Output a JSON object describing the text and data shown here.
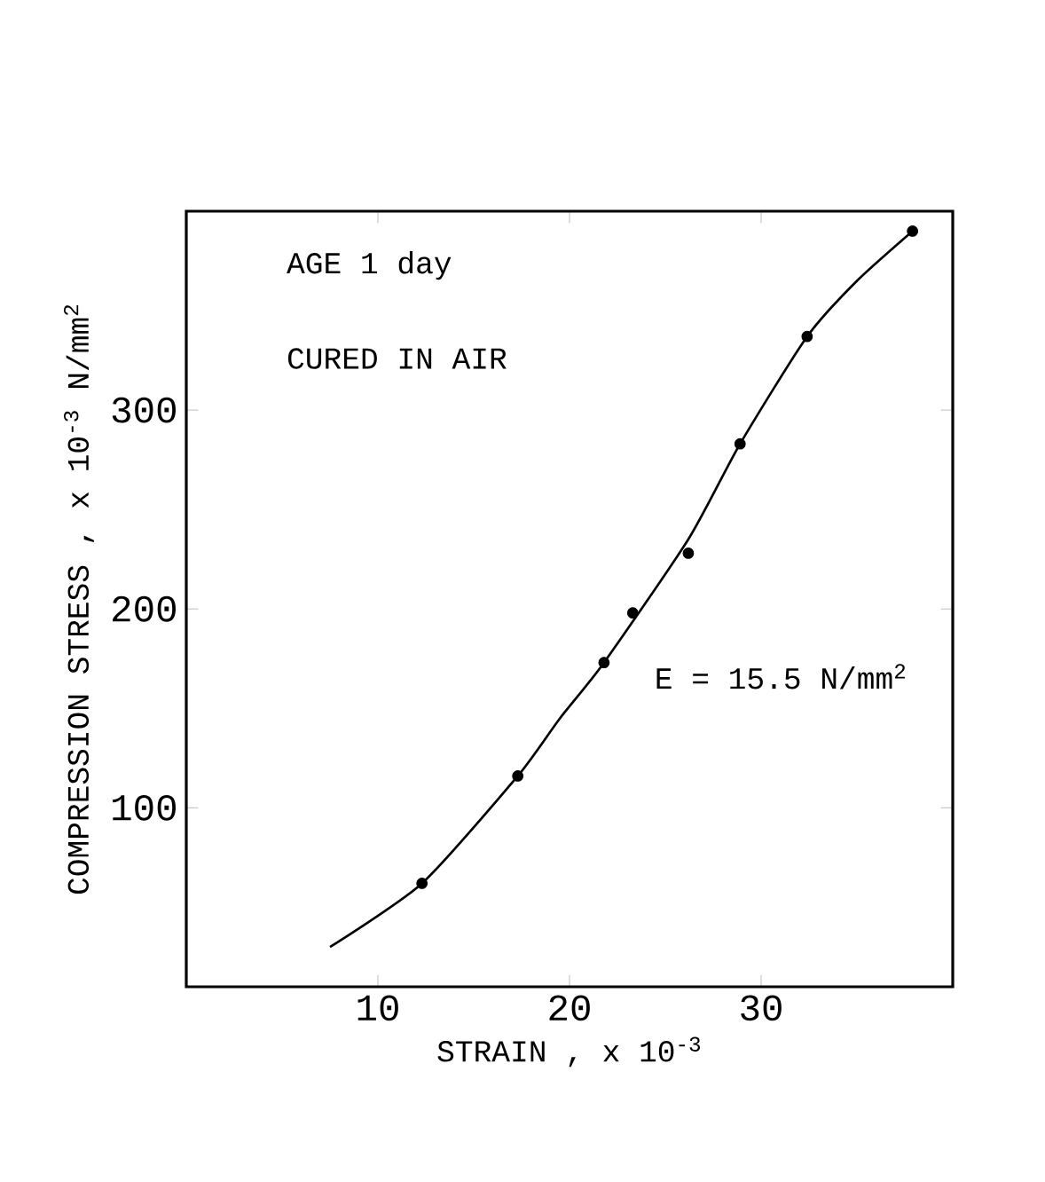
{
  "chart_data": {
    "type": "scatter",
    "xlabel": "STRAIN ,  x 10$^{-3}$",
    "ylabel": "COMPRESSION STRESS , x 10$^{-3}$ N/mm$^{2}$",
    "annotations": [
      "AGE 1 day",
      "CURED IN AIR",
      "E = 15.5 N/mm$^{2}$"
    ],
    "series": [
      {
        "color": "#000000",
        "marker": "circle",
        "x": [
          12.3,
          17.3,
          21.8,
          23.3,
          26.2,
          28.9,
          32.4,
          37.9
        ],
        "values": [
          62,
          116,
          173,
          198,
          228,
          283,
          337,
          390
        ]
      },
      {
        "type": "line",
        "color": "#000000",
        "marker": "none",
        "line_style": "solid",
        "x": [
          7.5,
          12.3,
          17.3,
          19.5,
          21.8,
          26.2,
          28.9,
          32.4,
          35,
          37.9
        ],
        "values": [
          30,
          62,
          116,
          145,
          173,
          235,
          283,
          337,
          365,
          390
        ]
      }
    ],
    "xlim": [
      0,
      40
    ],
    "ylim": [
      10,
      400
    ],
    "xticks": [
      10,
      20,
      30
    ],
    "yticks": [
      100,
      200,
      300
    ]
  }
}
